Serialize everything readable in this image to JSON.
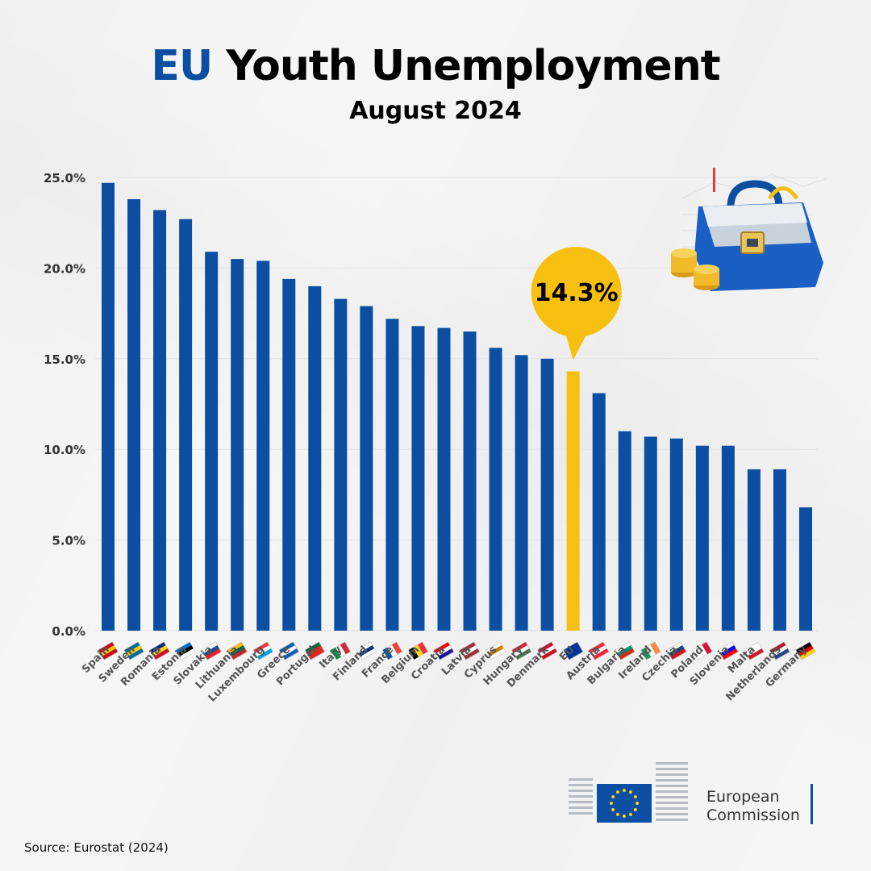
{
  "header": {
    "title_accent": "EU",
    "title_rest": "Youth Unemployment",
    "subtitle": "August 2024"
  },
  "colors": {
    "bar": "#0b4ea2",
    "highlight": "#f7bf0f",
    "accent": "#0b4ea2"
  },
  "chart_data": {
    "type": "bar",
    "title": "EU Youth Unemployment",
    "subtitle": "August 2024",
    "xlabel": "",
    "ylabel": "",
    "ylim": [
      0,
      25
    ],
    "yticks": [
      "0.0%",
      "5.0%",
      "10.0%",
      "15.0%",
      "20.0%",
      "25.0%"
    ],
    "grid": true,
    "categories": [
      "Spain",
      "Sweden",
      "Romania",
      "Estonia",
      "Slovakia",
      "Lithuania",
      "Luxembourg",
      "Greece",
      "Portugal",
      "Italy",
      "Finland",
      "France",
      "Belgium",
      "Croatia",
      "Latvia",
      "Cyprus",
      "Hungary",
      "Denmark",
      "EU",
      "Austria",
      "Bulgaria",
      "Ireland",
      "Czechia",
      "Poland",
      "Slovenia",
      "Malta",
      "Netherlands",
      "Germany"
    ],
    "values": [
      24.7,
      23.8,
      23.2,
      22.7,
      20.9,
      20.5,
      20.4,
      19.4,
      19.0,
      18.3,
      17.9,
      17.2,
      16.8,
      16.7,
      16.5,
      15.6,
      15.2,
      15.0,
      14.3,
      13.1,
      11.0,
      10.7,
      10.6,
      10.2,
      10.2,
      8.9,
      8.9,
      6.8
    ],
    "highlight_category": "EU",
    "callout": "14.3%"
  },
  "flags": [
    "es-flag-icon",
    "se-flag-icon",
    "ro-flag-icon",
    "ee-flag-icon",
    "sk-flag-icon",
    "lt-flag-icon",
    "lu-flag-icon",
    "gr-flag-icon",
    "pt-flag-icon",
    "it-flag-icon",
    "fi-flag-icon",
    "fr-flag-icon",
    "be-flag-icon",
    "hr-flag-icon",
    "lv-flag-icon",
    "cy-flag-icon",
    "hu-flag-icon",
    "dk-flag-icon",
    "eu-flag-icon",
    "at-flag-icon",
    "bg-flag-icon",
    "ie-flag-icon",
    "cz-flag-icon",
    "pl-flag-icon",
    "si-flag-icon",
    "mt-flag-icon",
    "nl-flag-icon",
    "de-flag-icon"
  ],
  "footer": {
    "source": "Source: Eurostat (2024)",
    "logo_line1": "European",
    "logo_line2": "Commission"
  }
}
